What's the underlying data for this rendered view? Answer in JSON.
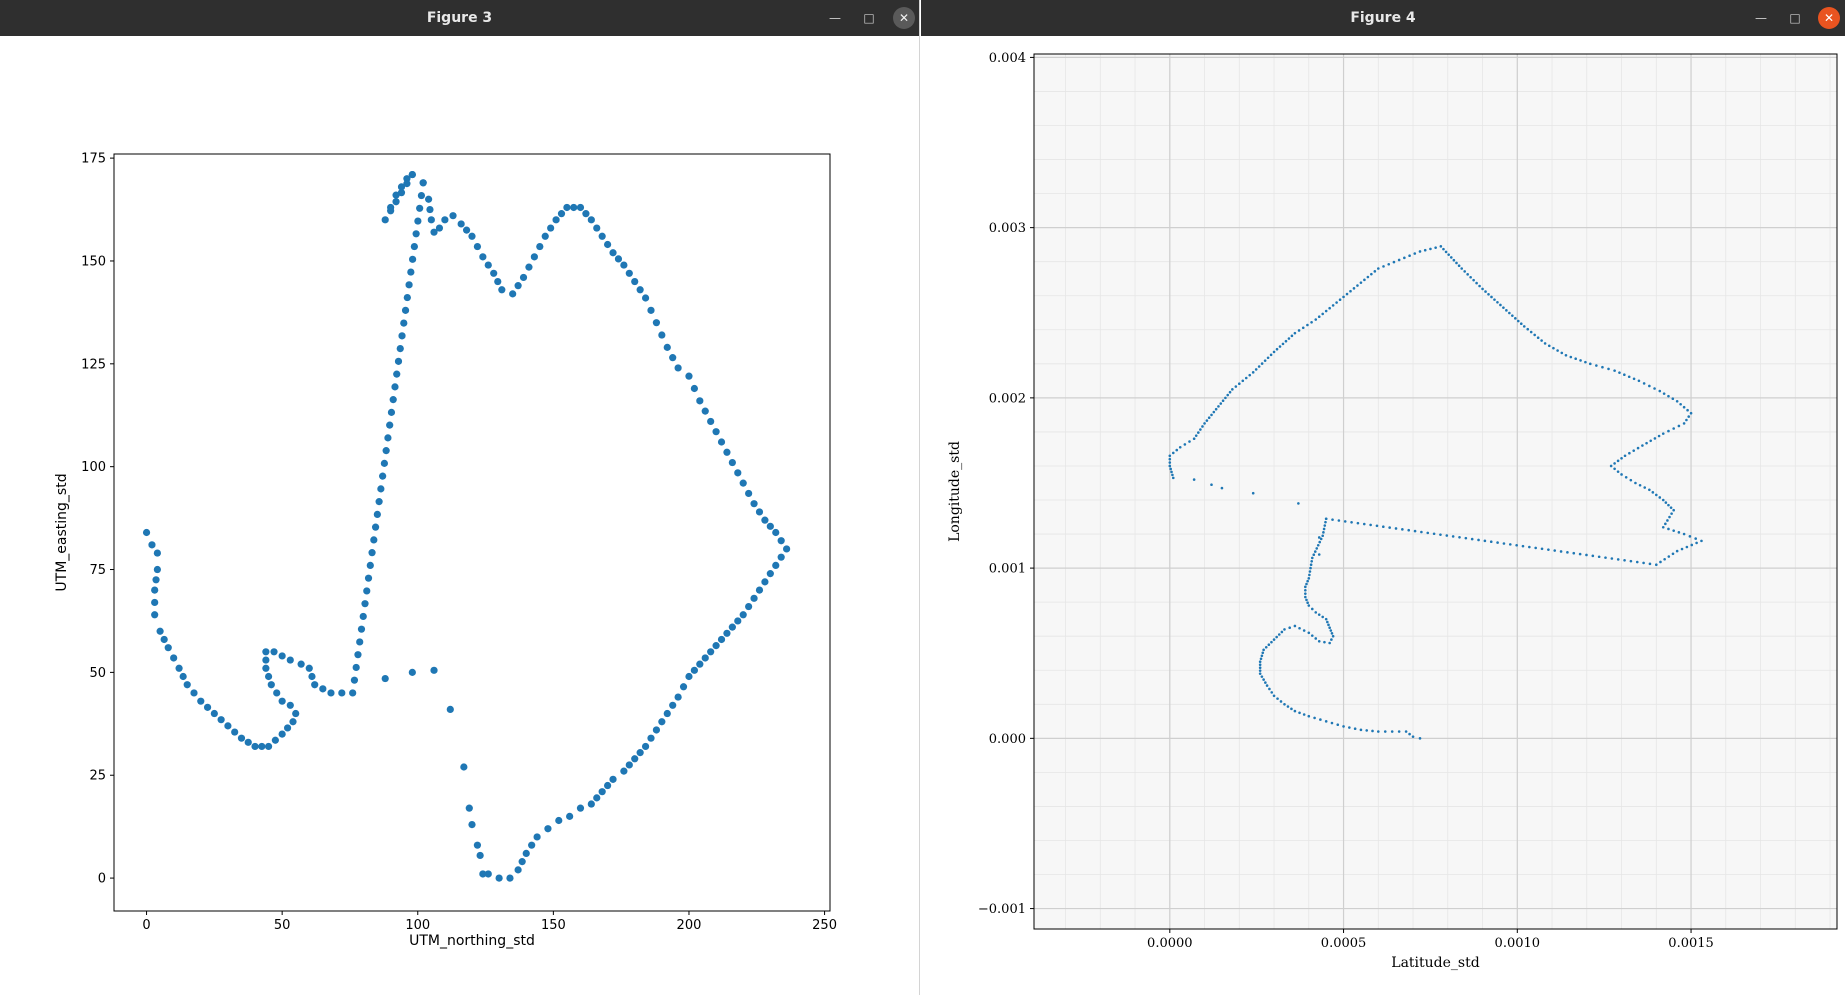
{
  "windows": [
    {
      "title": "Figure 3",
      "minimize_icon": "minimize-icon",
      "maximize_icon": "maximize-icon",
      "close_icon": "close-icon"
    },
    {
      "title": "Figure 4",
      "minimize_icon": "minimize-icon",
      "maximize_icon": "maximize-icon",
      "close_icon": "close-icon"
    }
  ],
  "colors": {
    "marker": "#1f77b4",
    "titlebar": "#2f2f2f",
    "close_active": "#e95420",
    "grid_panel": "#f7f7f7"
  },
  "chart_data": [
    {
      "type": "scatter",
      "title": "",
      "xlabel": "UTM_northing_std",
      "ylabel": "UTM_easting_std",
      "xlim": [
        -12,
        252
      ],
      "ylim": [
        -8,
        176
      ],
      "xticks": [
        0,
        50,
        100,
        150,
        200,
        250
      ],
      "yticks": [
        0,
        25,
        50,
        75,
        100,
        125,
        150,
        175
      ],
      "grid": false,
      "path": [
        [
          0,
          84
        ],
        [
          2,
          81
        ],
        [
          4,
          79
        ],
        [
          4,
          75
        ],
        [
          3,
          70
        ],
        [
          3,
          64
        ],
        [
          5,
          60
        ],
        [
          8,
          56
        ],
        [
          12,
          51
        ],
        [
          15,
          47
        ],
        [
          20,
          43
        ],
        [
          25,
          40
        ],
        [
          30,
          37
        ],
        [
          35,
          34
        ],
        [
          40,
          32
        ],
        [
          45,
          32
        ],
        [
          50,
          35
        ],
        [
          54,
          38
        ],
        [
          55,
          40
        ],
        [
          53,
          42
        ],
        [
          50,
          43
        ],
        [
          48,
          45
        ],
        [
          46,
          47
        ],
        [
          45,
          49
        ],
        [
          44,
          51
        ],
        [
          44,
          53
        ],
        [
          44,
          55
        ],
        [
          47,
          55
        ],
        [
          50,
          54
        ],
        [
          53,
          53
        ],
        [
          57,
          52
        ],
        [
          60,
          51
        ],
        [
          61,
          49
        ],
        [
          62,
          47
        ],
        [
          65,
          46
        ],
        [
          68,
          45
        ],
        [
          72,
          45
        ],
        [
          76,
          45
        ],
        [
          102,
          169
        ],
        [
          98,
          171
        ],
        [
          96,
          170
        ],
        [
          94,
          168
        ],
        [
          92,
          166
        ],
        [
          90,
          163
        ],
        [
          88,
          160
        ],
        [
          98,
          171
        ],
        [
          102,
          169
        ],
        [
          104,
          165
        ],
        [
          105,
          160
        ],
        [
          106,
          157
        ],
        [
          108,
          158
        ],
        [
          110,
          160
        ],
        [
          113,
          161
        ],
        [
          116,
          159
        ],
        [
          120,
          156
        ],
        [
          124,
          151
        ],
        [
          128,
          147
        ],
        [
          131,
          143
        ],
        [
          135,
          142
        ],
        [
          139,
          146
        ],
        [
          143,
          151
        ],
        [
          147,
          156
        ],
        [
          151,
          160
        ],
        [
          155,
          163
        ],
        [
          160,
          163
        ],
        [
          164,
          160
        ],
        [
          168,
          156
        ],
        [
          172,
          152
        ],
        [
          176,
          149
        ],
        [
          180,
          145
        ],
        [
          184,
          141
        ],
        [
          188,
          135
        ],
        [
          192,
          129
        ],
        [
          196,
          124
        ],
        [
          200,
          122
        ],
        [
          204,
          116
        ],
        [
          208,
          111
        ],
        [
          212,
          106
        ],
        [
          216,
          101
        ],
        [
          220,
          96
        ],
        [
          224,
          91
        ],
        [
          228,
          87
        ],
        [
          232,
          84
        ],
        [
          236,
          80
        ],
        [
          234,
          78
        ],
        [
          232,
          76
        ],
        [
          228,
          72
        ],
        [
          224,
          68
        ],
        [
          220,
          64
        ],
        [
          216,
          61
        ],
        [
          212,
          58
        ],
        [
          208,
          55
        ],
        [
          204,
          52
        ],
        [
          200,
          49
        ],
        [
          196,
          44
        ],
        [
          192,
          40
        ],
        [
          188,
          36
        ],
        [
          184,
          32
        ],
        [
          180,
          29
        ],
        [
          176,
          26
        ],
        [
          172,
          24
        ],
        [
          168,
          21
        ],
        [
          164,
          18
        ],
        [
          160,
          17
        ],
        [
          156,
          15
        ],
        [
          152,
          14
        ],
        [
          148,
          12
        ],
        [
          144,
          10
        ],
        [
          140,
          6
        ],
        [
          137,
          2
        ],
        [
          134,
          0
        ],
        [
          130,
          0
        ],
        [
          126,
          1
        ],
        [
          124,
          1
        ]
      ],
      "scatter": [
        [
          88,
          48.5
        ],
        [
          98,
          50
        ],
        [
          106,
          50.5
        ],
        [
          112,
          41
        ],
        [
          117,
          27
        ],
        [
          119,
          17
        ],
        [
          120,
          13
        ],
        [
          122,
          8
        ],
        [
          123,
          5.5
        ]
      ]
    },
    {
      "type": "scatter",
      "title": "",
      "xlabel": "Latitude_std",
      "ylabel": "Longitude_std",
      "xlim": [
        -0.0003908,
        0.00192
      ],
      "ylim": [
        -0.00112,
        0.00402
      ],
      "xticks": [
        0.0,
        0.0005,
        0.001,
        0.0015
      ],
      "xtick_labels": [
        "0.0000",
        "0.0005",
        "0.0010",
        "0.0015"
      ],
      "yticks": [
        -0.001,
        0.0,
        0.001,
        0.002,
        0.003,
        0.004
      ],
      "ytick_labels": [
        "−0.001",
        "0.000",
        "0.001",
        "0.002",
        "0.003",
        "0.004"
      ],
      "grid": true,
      "minor_grid": true,
      "path": [
        [
          0.00072,
          0.0
        ],
        [
          0.0007,
          1e-05
        ],
        [
          0.00068,
          4e-05
        ],
        [
          0.00064,
          4e-05
        ],
        [
          0.0006,
          4e-05
        ],
        [
          0.00055,
          5e-05
        ],
        [
          0.0005,
          7e-05
        ],
        [
          0.00045,
          0.0001
        ],
        [
          0.0004,
          0.00013
        ],
        [
          0.00036,
          0.00016
        ],
        [
          0.00033,
          0.0002
        ],
        [
          0.0003,
          0.00025
        ],
        [
          0.00028,
          0.00031
        ],
        [
          0.00026,
          0.00038
        ],
        [
          0.00026,
          0.00045
        ],
        [
          0.00027,
          0.00052
        ],
        [
          0.0003,
          0.00058
        ],
        [
          0.00033,
          0.00064
        ],
        [
          0.00036,
          0.00066
        ],
        [
          0.0004,
          0.00062
        ],
        [
          0.00043,
          0.00057
        ],
        [
          0.00046,
          0.00056
        ],
        [
          0.00047,
          0.0006
        ],
        [
          0.00046,
          0.00065
        ],
        [
          0.00045,
          0.0007
        ],
        [
          0.00042,
          0.00074
        ],
        [
          0.0004,
          0.00078
        ],
        [
          0.00039,
          0.00083
        ],
        [
          0.00039,
          0.00089
        ],
        [
          0.0004,
          0.00094
        ],
        [
          0.00041,
          0.00106
        ],
        [
          0.00044,
          0.00119
        ],
        [
          0.00045,
          0.00129
        ],
        [
          0.0014,
          0.00102
        ],
        [
          0.00146,
          0.0011
        ],
        [
          0.00153,
          0.00116
        ],
        [
          0.00148,
          0.0012
        ],
        [
          0.00142,
          0.00124
        ],
        [
          0.00145,
          0.00134
        ],
        [
          0.00142,
          0.0014
        ],
        [
          0.00138,
          0.00146
        ],
        [
          0.00134,
          0.0015
        ],
        [
          0.0013,
          0.00155
        ],
        [
          0.00127,
          0.0016
        ],
        [
          0.00131,
          0.00166
        ],
        [
          0.00136,
          0.00172
        ],
        [
          0.00142,
          0.00179
        ],
        [
          0.00148,
          0.00185
        ],
        [
          0.0015,
          0.00191
        ],
        [
          0.00146,
          0.00198
        ],
        [
          0.00141,
          0.00204
        ],
        [
          0.00135,
          0.0021
        ],
        [
          0.00128,
          0.00216
        ],
        [
          0.00121,
          0.0022
        ],
        [
          0.00114,
          0.00225
        ],
        [
          0.00108,
          0.00232
        ],
        [
          0.00102,
          0.00242
        ],
        [
          0.00096,
          0.00253
        ],
        [
          0.0009,
          0.00264
        ],
        [
          0.00084,
          0.00276
        ],
        [
          0.00078,
          0.00289
        ],
        [
          0.00072,
          0.00286
        ],
        [
          0.00066,
          0.00281
        ],
        [
          0.0006,
          0.00276
        ],
        [
          0.00054,
          0.00266
        ],
        [
          0.00048,
          0.00256
        ],
        [
          0.00042,
          0.00246
        ],
        [
          0.00036,
          0.00238
        ],
        [
          0.0003,
          0.00227
        ],
        [
          0.00024,
          0.00215
        ],
        [
          0.00018,
          0.00205
        ],
        [
          0.00014,
          0.00195
        ],
        [
          0.0001,
          0.00185
        ],
        [
          7e-05,
          0.00176
        ],
        [
          3e-05,
          0.00171
        ],
        [
          0.0,
          0.00166
        ],
        [
          0.0,
          0.0016
        ],
        [
          1e-05,
          0.00153
        ]
      ],
      "scatter": [
        [
          7e-05,
          0.00152
        ],
        [
          0.00012,
          0.00149
        ],
        [
          0.00015,
          0.00147
        ],
        [
          0.00024,
          0.00144
        ],
        [
          0.00037,
          0.00138
        ],
        [
          0.00043,
          0.00118
        ],
        [
          0.00043,
          0.00108
        ],
        [
          0.00045,
          0.00129
        ]
      ]
    }
  ]
}
